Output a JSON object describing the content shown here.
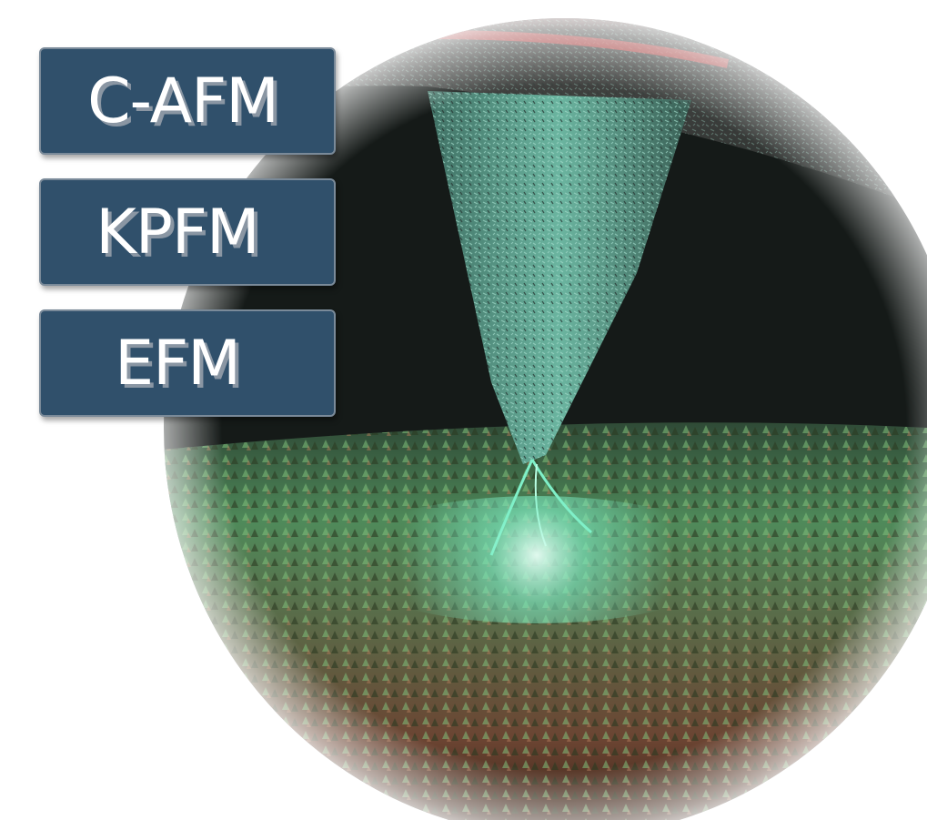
{
  "illustration": {
    "subject": "probe-tip-scanning-surface",
    "colors": {
      "background": "#ffffff",
      "chamber_dark": "#151a18",
      "tip": "#5fa894",
      "glow": "#7ff0c8",
      "surface_top": "#4f8a5a",
      "surface_bottom": "#6b4432",
      "rim": "#d24a4a"
    }
  },
  "buttons": [
    {
      "label": "C-AFM"
    },
    {
      "label": "KPFM"
    },
    {
      "label": "EFM"
    }
  ],
  "button_style": {
    "fill": "#30506b",
    "border": "#7a8a99",
    "text": "#ffffff",
    "text_shadow": "#8a96a3"
  }
}
